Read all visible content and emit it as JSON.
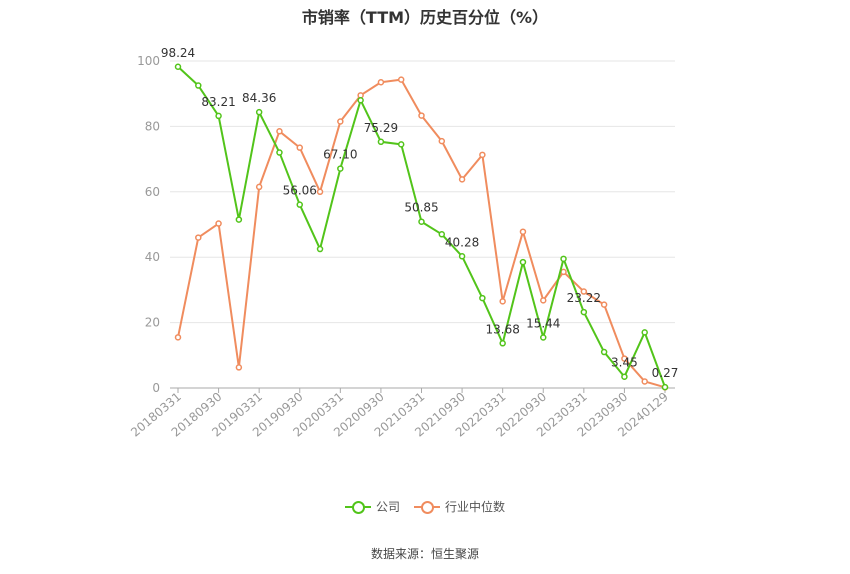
{
  "title": "市销率（TTM）历史百分位（%）",
  "source": "数据来源：恒生聚源",
  "colors": {
    "company": "#52c41a",
    "industry": "#f08c5e",
    "grid": "#e6e6e6",
    "axis": "#999999"
  },
  "chart_data": {
    "type": "line",
    "title": "市销率（TTM）历史百分位（%）",
    "ylim": [
      0,
      100
    ],
    "yticks": [
      0,
      20,
      40,
      60,
      80,
      100
    ],
    "grid": true,
    "legend_position": "bottom-center",
    "x": [
      "20180331",
      "20180630",
      "20180930",
      "20181231",
      "20190331",
      "20190630",
      "20190930",
      "20191231",
      "20200331",
      "20200630",
      "20200930",
      "20201231",
      "20210331",
      "20210630",
      "20210930",
      "20211231",
      "20220331",
      "20220630",
      "20220930",
      "20221231",
      "20230331",
      "20230630",
      "20230930",
      "20231231",
      "20240129"
    ],
    "xtick_labels": [
      "20180331",
      "20180930",
      "20190331",
      "20190930",
      "20200331",
      "20200930",
      "20210331",
      "20210930",
      "20220331",
      "20220930",
      "20230331",
      "20230930",
      "20240129"
    ],
    "series": [
      {
        "name": "公司",
        "values": [
          98.24,
          92.5,
          83.21,
          51.5,
          84.36,
          72.0,
          56.06,
          42.5,
          67.1,
          88.0,
          75.29,
          74.5,
          50.85,
          47.0,
          40.28,
          27.5,
          13.68,
          38.5,
          15.44,
          39.5,
          23.22,
          11.0,
          3.45,
          17.0,
          0.27
        ],
        "labels": {
          "0": "98.24",
          "2": "83.21",
          "4": "84.36",
          "6": "56.06",
          "8": "67.10",
          "10": "75.29",
          "12": "50.85",
          "14": "40.28",
          "16": "13.68",
          "18": "15.44",
          "20": "23.22",
          "22": "3.45",
          "24": "0.27"
        }
      },
      {
        "name": "行业中位数",
        "values": [
          15.5,
          46.0,
          50.3,
          6.3,
          61.5,
          78.5,
          73.5,
          60.0,
          81.5,
          89.5,
          93.5,
          94.3,
          83.3,
          75.5,
          63.8,
          71.3,
          26.5,
          47.8,
          26.8,
          35.5,
          29.5,
          25.5,
          9.0,
          2.0,
          0.2
        ]
      }
    ]
  }
}
